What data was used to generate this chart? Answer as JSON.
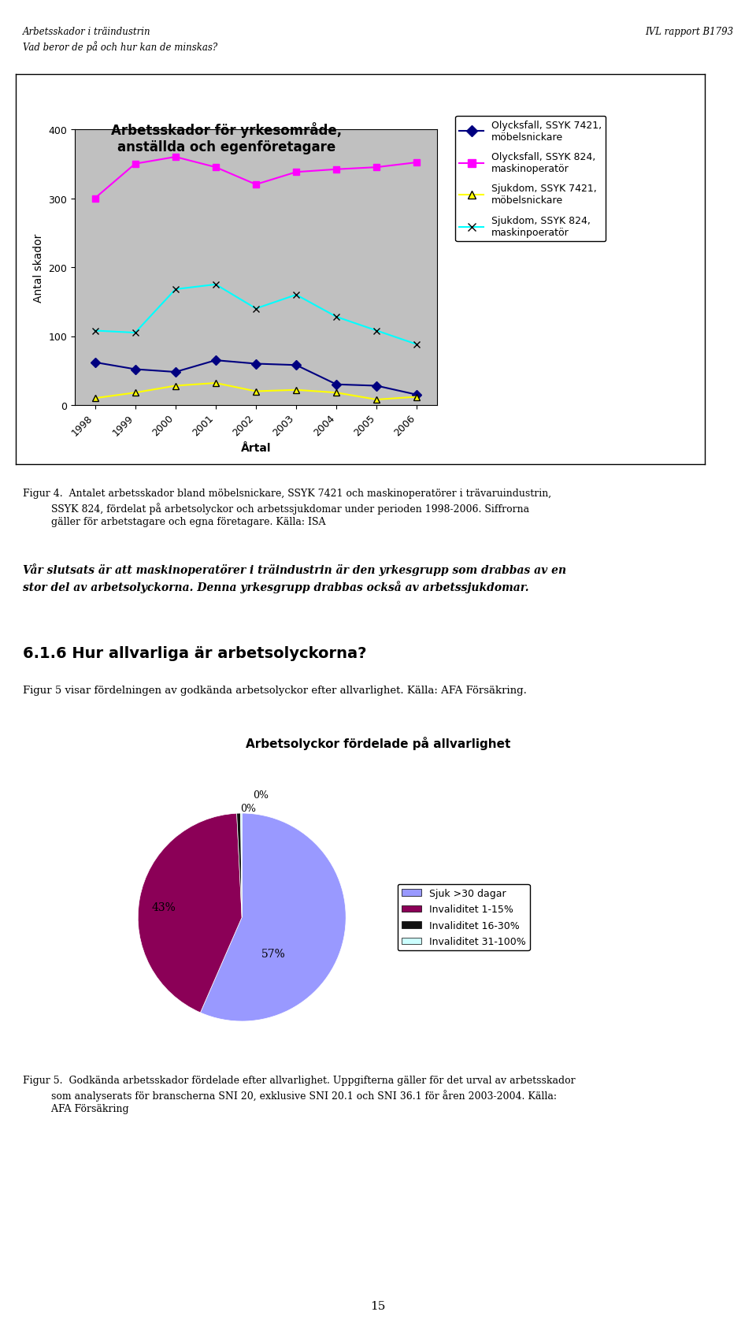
{
  "page_title_left": "Arbetsskador i träindustrin\nVad beror de på och hur kan de minskas?",
  "page_title_right": "IVL rapport B1793",
  "page_number": "15",
  "line_chart": {
    "title": "Arbetsskador för yrkesområde,\nanställda och egenföretagare",
    "xlabel": "Årtal",
    "ylabel": "Antal skador",
    "years": [
      1998,
      1999,
      2000,
      2001,
      2002,
      2003,
      2004,
      2005,
      2006
    ],
    "ylim": [
      0,
      400
    ],
    "yticks": [
      0,
      100,
      200,
      300,
      400
    ],
    "background_color": "#c0c0c0",
    "series": [
      {
        "label": "Olycksfall, SSYK 7421,\nmöbelsnickare",
        "color": "#000080",
        "marker": "D",
        "values": [
          62,
          52,
          48,
          65,
          60,
          58,
          30,
          28,
          15
        ]
      },
      {
        "label": "Olycksfall, SSYK 824,\nmaskinoperatör",
        "color": "#ff00ff",
        "marker": "s",
        "values": [
          300,
          350,
          360,
          345,
          320,
          338,
          342,
          345,
          352
        ]
      },
      {
        "label": "Sjukdom, SSYK 7421,\nmöbelsnickare",
        "color": "#ffff00",
        "marker": "^",
        "values": [
          10,
          18,
          28,
          32,
          20,
          22,
          18,
          8,
          12
        ]
      },
      {
        "label": "Sjukdom, SSYK 824,\nmaskinpoeratör",
        "color": "#00ffff",
        "marker": "x",
        "values": [
          108,
          105,
          168,
          175,
          140,
          160,
          128,
          108,
          88
        ]
      }
    ]
  },
  "figur4_text_line1": "Figur 4.  Antalet arbetsskador bland möbelsnickare, SSYK 7421 och maskinoperatörer i trävaruindustrin,",
  "figur4_text_line2": "         SSYK 824, fördelat på arbetsolyckor och arbetssjukdomar under perioden 1998-2006. Siffrorna",
  "figur4_text_line3": "         gäller för arbetstagare och egna företagare. Källa: ISA",
  "bold_text": "Vår slutsats är att maskinoperatörer i träindustrin är den yrkesgrupp som drabbas av en\nstor del av arbetsolyckorna. Denna yrkesgrupp drabbas också av arbetssjukdomar.",
  "section_title": "6.1.6 Hur allvarliga är arbetsolyckorna?",
  "figur5_intro": "Figur 5 visar fördelningen av godkända arbetsolyckor efter allvarlighet. Källa: AFA Försäkring.",
  "pie_chart": {
    "title": "Arbetsolyckor fördelade på allvarlighet",
    "slices": [
      57,
      43,
      0.6,
      0.2
    ],
    "colors": [
      "#9999ff",
      "#8b0057",
      "#111111",
      "#ccffff"
    ],
    "legend_labels": [
      "Sjuk >30 dagar",
      "Invaliditet 1-15%",
      "Invaliditet 16-30%",
      "Invaliditet 31-100%"
    ],
    "legend_colors": [
      "#9999ff",
      "#8b0057",
      "#111111",
      "#ccffff"
    ],
    "startangle": 90
  },
  "figur5_text_line1": "Figur 5.  Godkända arbetsskador fördelade efter allvarlighet. Uppgifterna gäller för det urval av arbetsskador",
  "figur5_text_line2": "         som analyserats för branscherna SNI 20, exklusive SNI 20.1 och SNI 36.1 för åren 2003-2004. Källa:",
  "figur5_text_line3": "         AFA Försäkring"
}
